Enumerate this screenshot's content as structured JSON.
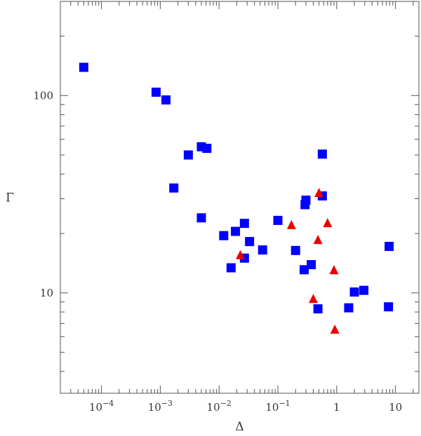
{
  "chart_data": {
    "type": "scatter",
    "title": "",
    "xlabel": "Δ",
    "ylabel": "Γ",
    "xscale": "log",
    "yscale": "log",
    "xlim": [
      2e-05,
      25
    ],
    "ylim": [
      3.1,
      300
    ],
    "grid": false,
    "legend": "none",
    "x_ticks": [
      {
        "value": 0.0001,
        "base": "10",
        "exp": "−4"
      },
      {
        "value": 0.001,
        "base": "10",
        "exp": "−3"
      },
      {
        "value": 0.01,
        "base": "10",
        "exp": "−2"
      },
      {
        "value": 0.1,
        "base": "10",
        "exp": "−1"
      },
      {
        "value": 1,
        "base": "1",
        "exp": ""
      },
      {
        "value": 10,
        "base": "10",
        "exp": ""
      }
    ],
    "y_ticks": [
      {
        "value": 10,
        "label": "10"
      },
      {
        "value": 100,
        "label": "100"
      }
    ],
    "series": [
      {
        "marker": "square",
        "color": "#0000ff",
        "points": [
          {
            "x": 5e-05,
            "y": 139
          },
          {
            "x": 0.00085,
            "y": 104
          },
          {
            "x": 0.00125,
            "y": 95
          },
          {
            "x": 0.0017,
            "y": 34
          },
          {
            "x": 0.003,
            "y": 50
          },
          {
            "x": 0.005,
            "y": 55
          },
          {
            "x": 0.0062,
            "y": 54
          },
          {
            "x": 0.005,
            "y": 24
          },
          {
            "x": 0.012,
            "y": 19.5
          },
          {
            "x": 0.019,
            "y": 20.5
          },
          {
            "x": 0.027,
            "y": 22.5
          },
          {
            "x": 0.033,
            "y": 18.2
          },
          {
            "x": 0.016,
            "y": 13.4
          },
          {
            "x": 0.027,
            "y": 15.0
          },
          {
            "x": 0.055,
            "y": 16.5
          },
          {
            "x": 0.1,
            "y": 23.3
          },
          {
            "x": 0.2,
            "y": 16.4
          },
          {
            "x": 0.28,
            "y": 13.1
          },
          {
            "x": 0.29,
            "y": 28
          },
          {
            "x": 0.3,
            "y": 29.5
          },
          {
            "x": 0.37,
            "y": 13.9
          },
          {
            "x": 0.48,
            "y": 8.3
          },
          {
            "x": 0.57,
            "y": 31
          },
          {
            "x": 0.57,
            "y": 50.5
          },
          {
            "x": 1.6,
            "y": 8.4
          },
          {
            "x": 2.0,
            "y": 10.1
          },
          {
            "x": 2.9,
            "y": 10.3
          },
          {
            "x": 7.6,
            "y": 8.5
          },
          {
            "x": 7.8,
            "y": 17.2
          }
        ]
      },
      {
        "marker": "triangle",
        "color": "#ee0000",
        "points": [
          {
            "x": 0.023,
            "y": 15.5
          },
          {
            "x": 0.17,
            "y": 22
          },
          {
            "x": 0.4,
            "y": 9.3
          },
          {
            "x": 0.48,
            "y": 18.5
          },
          {
            "x": 0.5,
            "y": 32
          },
          {
            "x": 0.7,
            "y": 22.5
          },
          {
            "x": 0.9,
            "y": 13
          },
          {
            "x": 0.93,
            "y": 6.5
          }
        ]
      }
    ]
  }
}
